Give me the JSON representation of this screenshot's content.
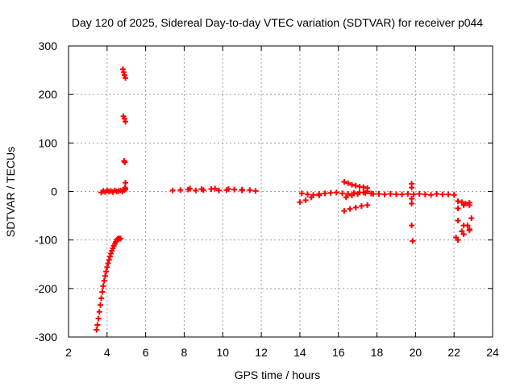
{
  "chart_data": {
    "type": "scatter",
    "title": "Day 120 of 2025, Sidereal Day-to-day VTEC variation (SDTVAR) for receiver p044",
    "xlabel": "GPS time / hours",
    "ylabel": "SDTVAR / TECUs",
    "xlim": [
      2,
      24
    ],
    "ylim": [
      -300,
      300
    ],
    "xticks": [
      2,
      4,
      6,
      8,
      10,
      12,
      14,
      16,
      18,
      20,
      22,
      24
    ],
    "yticks": [
      -300,
      -200,
      -100,
      0,
      100,
      200,
      300
    ],
    "grid": true,
    "marker": "+",
    "color": "#ff0000",
    "series": [
      {
        "name": "SDTVAR",
        "x": [
          3.45,
          3.5,
          3.55,
          3.6,
          3.65,
          3.7,
          3.75,
          3.8,
          3.85,
          3.9,
          3.95,
          4.0,
          4.05,
          4.1,
          4.15,
          4.2,
          4.25,
          4.3,
          4.35,
          4.4,
          4.45,
          4.5,
          4.55,
          4.6,
          4.65,
          4.7,
          3.7,
          3.8,
          3.9,
          4.0,
          4.1,
          4.2,
          4.3,
          4.4,
          4.5,
          4.6,
          4.7,
          4.8,
          4.9,
          4.95,
          4.82,
          4.86,
          4.9,
          4.95,
          4.85,
          4.9,
          4.95,
          4.88,
          4.92,
          4.95,
          4.93,
          7.4,
          7.8,
          8.2,
          8.6,
          9.0,
          9.4,
          9.8,
          10.2,
          10.6,
          11.0,
          11.4,
          11.7,
          8.3,
          8.9,
          9.6,
          10.3,
          11.0,
          14.0,
          14.3,
          14.6,
          15.0,
          14.1,
          14.4,
          14.7,
          15.0,
          15.3,
          15.6,
          15.9,
          16.2,
          16.5,
          16.8,
          17.1,
          17.4,
          17.7,
          16.3,
          16.5,
          16.7,
          16.9,
          17.1,
          17.3,
          17.5,
          16.4,
          16.7,
          17.0,
          17.3,
          17.5,
          16.3,
          16.6,
          16.9,
          17.2,
          17.5,
          17.8,
          18.1,
          18.4,
          18.7,
          19.0,
          19.3,
          19.6,
          19.9,
          20.2,
          20.5,
          20.8,
          21.1,
          21.4,
          21.7,
          22.0,
          19.8,
          19.8,
          19.8,
          19.8,
          19.8,
          19.85,
          22.2,
          22.4,
          22.6,
          22.8,
          22.2,
          22.5,
          22.8,
          22.2,
          22.5,
          22.8,
          22.1,
          22.4,
          22.7,
          22.9,
          22.2,
          22.5,
          22.8
        ],
        "y": [
          -285,
          -275,
          -262,
          -248,
          -234,
          -220,
          -207,
          -195,
          -184,
          -174,
          -165,
          -156,
          -148,
          -141,
          -134,
          -128,
          -122,
          -117,
          -112,
          -108,
          -104,
          -100,
          -98,
          -97,
          -97,
          -97,
          -2,
          1,
          -1,
          2,
          0,
          1,
          -1,
          2,
          0,
          1,
          2,
          0,
          3,
          5,
          252,
          246,
          240,
          234,
          155,
          150,
          144,
          63,
          60,
          18,
          8,
          2,
          3,
          4,
          2,
          3,
          5,
          2,
          3,
          4,
          2,
          3,
          1,
          6,
          5,
          6,
          5,
          4,
          -22,
          -18,
          -12,
          -8,
          -4,
          -6,
          -7,
          -5,
          -4,
          -3,
          -2,
          -4,
          -5,
          -3,
          -2,
          -3,
          -4,
          20,
          17,
          14,
          12,
          10,
          9,
          7,
          -12,
          -8,
          -5,
          -2,
          0,
          -40,
          -36,
          -33,
          -30,
          -28,
          -5,
          -5,
          -6,
          -5,
          -6,
          -6,
          -5,
          -6,
          -5,
          -6,
          -7,
          -5,
          -6,
          -6,
          -7,
          16,
          8,
          -15,
          -25,
          -70,
          -102,
          -20,
          -22,
          -25,
          -28,
          -35,
          -28,
          -23,
          -100,
          -88,
          -78,
          -95,
          -82,
          -70,
          -55,
          -60,
          -70,
          -80
        ]
      }
    ]
  }
}
